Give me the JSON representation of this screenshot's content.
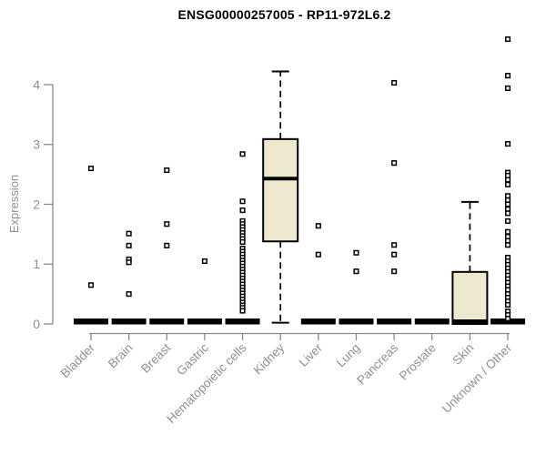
{
  "chart_data": {
    "type": "boxplot",
    "title": "ENSG00000257005 - RP11-972L6.2",
    "ylabel": "Expression",
    "yticks": [
      0,
      1,
      2,
      3,
      4
    ],
    "ylim": [
      0,
      4.85
    ],
    "grid": false,
    "legend": null,
    "categories": [
      "Bladder",
      "Brain",
      "Breast",
      "Gastric",
      "Hematopoietic cells",
      "Kidney",
      "Liver",
      "Lung",
      "Pancreas",
      "Prostate",
      "Skin",
      "Unknown / Other"
    ],
    "boxes": [
      {
        "category": "Bladder",
        "q1": 0,
        "median": 0,
        "q3": 0,
        "whisker_low": 0,
        "whisker_high": 0,
        "outliers": [
          2.6,
          0.65
        ]
      },
      {
        "category": "Brain",
        "q1": 0,
        "median": 0,
        "q3": 0,
        "whisker_low": 0,
        "whisker_high": 0,
        "outliers": [
          1.51,
          1.31,
          1.08,
          1.03,
          0.5
        ]
      },
      {
        "category": "Breast",
        "q1": 0,
        "median": 0,
        "q3": 0,
        "whisker_low": 0,
        "whisker_high": 0,
        "outliers": [
          2.57,
          1.67,
          1.31
        ]
      },
      {
        "category": "Gastric",
        "q1": 0,
        "median": 0,
        "q3": 0,
        "whisker_low": 0,
        "whisker_high": 0,
        "outliers": [
          1.05
        ]
      },
      {
        "category": "Hematopoietic cells",
        "q1": 0,
        "median": 0,
        "q3": 0,
        "whisker_low": 0,
        "whisker_high": 0,
        "outliers": [
          2.84,
          2.05,
          1.9,
          1.72,
          1.67,
          1.62,
          1.57,
          1.52,
          1.47,
          1.42,
          1.37,
          1.26,
          1.21,
          1.16,
          1.11,
          1.06,
          1.01,
          0.96,
          0.91,
          0.86,
          0.81,
          0.76,
          0.71,
          0.66,
          0.61,
          0.56,
          0.51,
          0.46,
          0.41,
          0.36,
          0.31,
          0.27,
          0.22
        ]
      },
      {
        "category": "Kidney",
        "q1": 1.38,
        "median": 2.43,
        "q3": 3.09,
        "whisker_low": 0.02,
        "whisker_high": 4.22,
        "outliers": []
      },
      {
        "category": "Liver",
        "q1": 0,
        "median": 0,
        "q3": 0,
        "whisker_low": 0,
        "whisker_high": 0,
        "outliers": [
          1.64,
          1.16
        ]
      },
      {
        "category": "Lung",
        "q1": 0,
        "median": 0,
        "q3": 0,
        "whisker_low": 0,
        "whisker_high": 0,
        "outliers": [
          1.19,
          0.88
        ]
      },
      {
        "category": "Pancreas",
        "q1": 0,
        "median": 0,
        "q3": 0,
        "whisker_low": 0,
        "whisker_high": 0,
        "outliers": [
          4.03,
          2.69,
          1.32,
          1.16,
          0.88
        ]
      },
      {
        "category": "Prostate",
        "q1": 0,
        "median": 0,
        "q3": 0,
        "whisker_low": 0,
        "whisker_high": 0,
        "outliers": []
      },
      {
        "category": "Skin",
        "q1": 0,
        "median": 0,
        "q3": 0.87,
        "whisker_low": 0,
        "whisker_high": 2.04,
        "outliers": []
      },
      {
        "category": "Unknown / Other",
        "q1": 0,
        "median": 0,
        "q3": 0,
        "whisker_low": 0,
        "whisker_high": 0,
        "outliers": [
          4.76,
          4.15,
          3.94,
          3.01,
          2.53,
          2.48,
          2.41,
          2.33,
          2.14,
          2.07,
          2.0,
          1.92,
          1.85,
          1.72,
          1.54,
          1.46,
          1.39,
          1.32,
          1.11,
          1.05,
          0.99,
          0.93,
          0.87,
          0.81,
          0.75,
          0.69,
          0.63,
          0.57,
          0.5,
          0.44,
          0.38,
          0.32,
          0.21,
          0.15,
          0.09
        ]
      }
    ],
    "colors": {
      "box_fill": "#EDE8CE",
      "box_stroke": "#000000",
      "median": "#000000",
      "outlier_fill": "#FFFFFF",
      "outlier_stroke": "#000000",
      "axis": "#898989",
      "label": "#8F8F8F",
      "title": "#000000",
      "background": "#FFFFFF"
    }
  }
}
